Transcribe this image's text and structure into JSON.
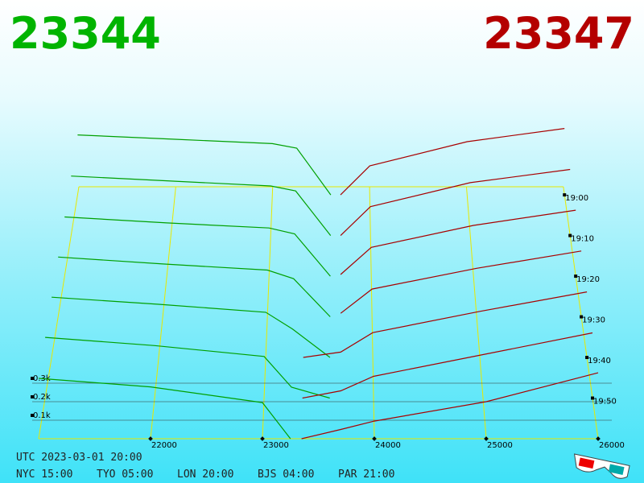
{
  "bid_price": 23344,
  "ask_price": 23347,
  "chart_data": {
    "type": "depth3d",
    "bid_color": "#00a000",
    "ask_color": "#a80000",
    "grid_color": "#e8e800",
    "xlim": [
      21000,
      26000
    ],
    "xticks": [
      22000,
      23000,
      24000,
      25000,
      26000
    ],
    "zlim": [
      0,
      400
    ],
    "zticks": [
      {
        "value": 100,
        "label": "0.1k"
      },
      {
        "value": 200,
        "label": "0.2k"
      },
      {
        "value": 300,
        "label": "0.3k"
      }
    ],
    "tlim": [
      1138,
      1200
    ],
    "tticks": [
      {
        "value": 1140,
        "label": "19:00"
      },
      {
        "value": 1150,
        "label": "19:10"
      },
      {
        "value": 1160,
        "label": "19:20"
      },
      {
        "value": 1170,
        "label": "19:30"
      },
      {
        "value": 1180,
        "label": "19:40"
      },
      {
        "value": 1190,
        "label": "19:50"
      }
    ],
    "bid_x": [
      21000,
      22000,
      23000,
      23250,
      23600
    ],
    "ask_x": [
      23350,
      23700,
      24000,
      25000,
      26000
    ],
    "snapshots": [
      {
        "time": 1140,
        "bid": [
          372,
          345,
          318,
          290,
          0
        ],
        "ask": [
          null,
          0,
          180,
          330,
          412
        ]
      },
      {
        "time": 1150,
        "bid": [
          360,
          330,
          300,
          270,
          0
        ],
        "ask": [
          null,
          0,
          175,
          320,
          400
        ]
      },
      {
        "time": 1160,
        "bid": [
          350,
          315,
          285,
          250,
          0
        ],
        "ask": [
          null,
          10,
          170,
          300,
          390
        ]
      },
      {
        "time": 1170,
        "bid": [
          345,
          305,
          270,
          220,
          0
        ],
        "ask": [
          null,
          20,
          160,
          280,
          380
        ]
      },
      {
        "time": 1180,
        "bid": [
          340,
          300,
          255,
          160,
          0
        ],
        "ask": [
          0,
          30,
          140,
          260,
          370
        ]
      },
      {
        "time": 1190,
        "bid": [
          335,
          290,
          230,
          60,
          0
        ],
        "ask": [
          0,
          40,
          120,
          240,
          360
        ]
      },
      {
        "time": 1200,
        "bid": [
          326,
          280,
          195,
          0,
          null
        ],
        "ask": [
          0,
          50,
          95,
          200,
          356
        ]
      }
    ]
  },
  "footer": {
    "utc": "UTC 2023-03-01 20:00",
    "cities": [
      "NYC 15:00",
      "TYO 05:00",
      "LON 20:00",
      "BJS 04:00",
      "PAR 21:00"
    ]
  }
}
